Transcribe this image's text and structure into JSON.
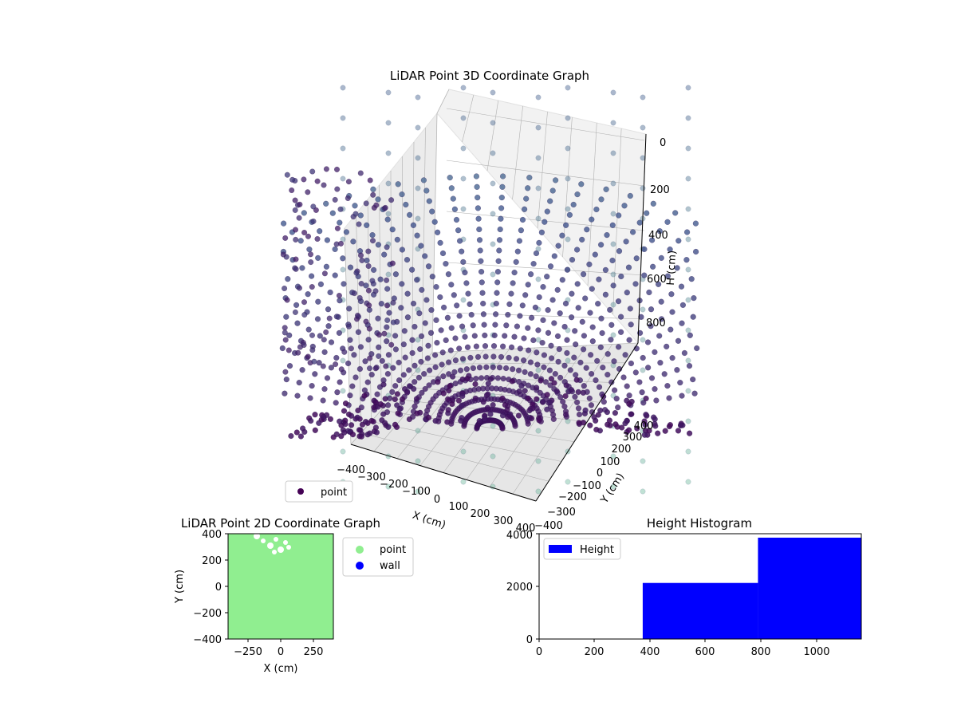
{
  "colors": {
    "point_2d": "#90ee90",
    "wall_2d": "#0000ff",
    "histogram": "#0000ff",
    "point_3d_low": "#440154",
    "point_3d_high": "#7fd1a4",
    "pane": "#f2f2f2",
    "grid": "#b0b0b0"
  },
  "chart_data": [
    {
      "type": "scatter",
      "title": "LiDAR Point 3D Coordinate Graph",
      "projection": "3d",
      "xlabel": "X (cm)",
      "ylabel": "Y (cm)",
      "zlabel": "H (cm)",
      "x_ticks": [
        "−400",
        "−300",
        "−200",
        "−100",
        "0",
        "100",
        "200",
        "300",
        "400"
      ],
      "y_ticks": [
        "−400",
        "−300",
        "−200",
        "−100",
        "0",
        "100",
        "200",
        "300",
        "400"
      ],
      "z_ticks": [
        "0",
        "200",
        "400",
        "600",
        "800"
      ],
      "xlim": [
        -400,
        400
      ],
      "ylim": [
        -400,
        400
      ],
      "zlim": [
        0,
        1000
      ],
      "z_inverted": true,
      "legend": {
        "entries": [
          "point"
        ],
        "position": "lower-left"
      },
      "colormap": "viridis",
      "series": [
        {
          "name": "point",
          "description_points": "bowl-shaped surface of radial scan lines, height increases with distance from center"
        }
      ]
    },
    {
      "type": "scatter",
      "title": "LiDAR Point 2D Coordinate Graph",
      "xlabel": "X (cm)",
      "ylabel": "Y (cm)",
      "x_ticks": [
        "−250",
        "0",
        "250"
      ],
      "y_ticks": [
        "400",
        "200",
        "0",
        "−200",
        "−400"
      ],
      "xlim": [
        -400,
        400
      ],
      "ylim": [
        -400,
        400
      ],
      "legend": {
        "entries": [
          "point",
          "wall"
        ],
        "position": "outside-right"
      },
      "series": [
        {
          "name": "point",
          "coverage": "nearly entire plot area"
        },
        {
          "name": "wall",
          "points": []
        }
      ]
    },
    {
      "type": "bar",
      "title": "Height Histogram",
      "x_ticks": [
        "0",
        "200",
        "400",
        "600",
        "800",
        "1000"
      ],
      "y_ticks": [
        "0",
        "2000",
        "4000"
      ],
      "xlim": [
        0,
        1160
      ],
      "ylim": [
        0,
        4000
      ],
      "legend": {
        "entries": [
          "Height"
        ],
        "position": "upper-left"
      },
      "bins": [
        {
          "start": 373,
          "end": 788,
          "count": 2130
        },
        {
          "start": 788,
          "end": 1160,
          "count": 3850
        }
      ]
    }
  ]
}
